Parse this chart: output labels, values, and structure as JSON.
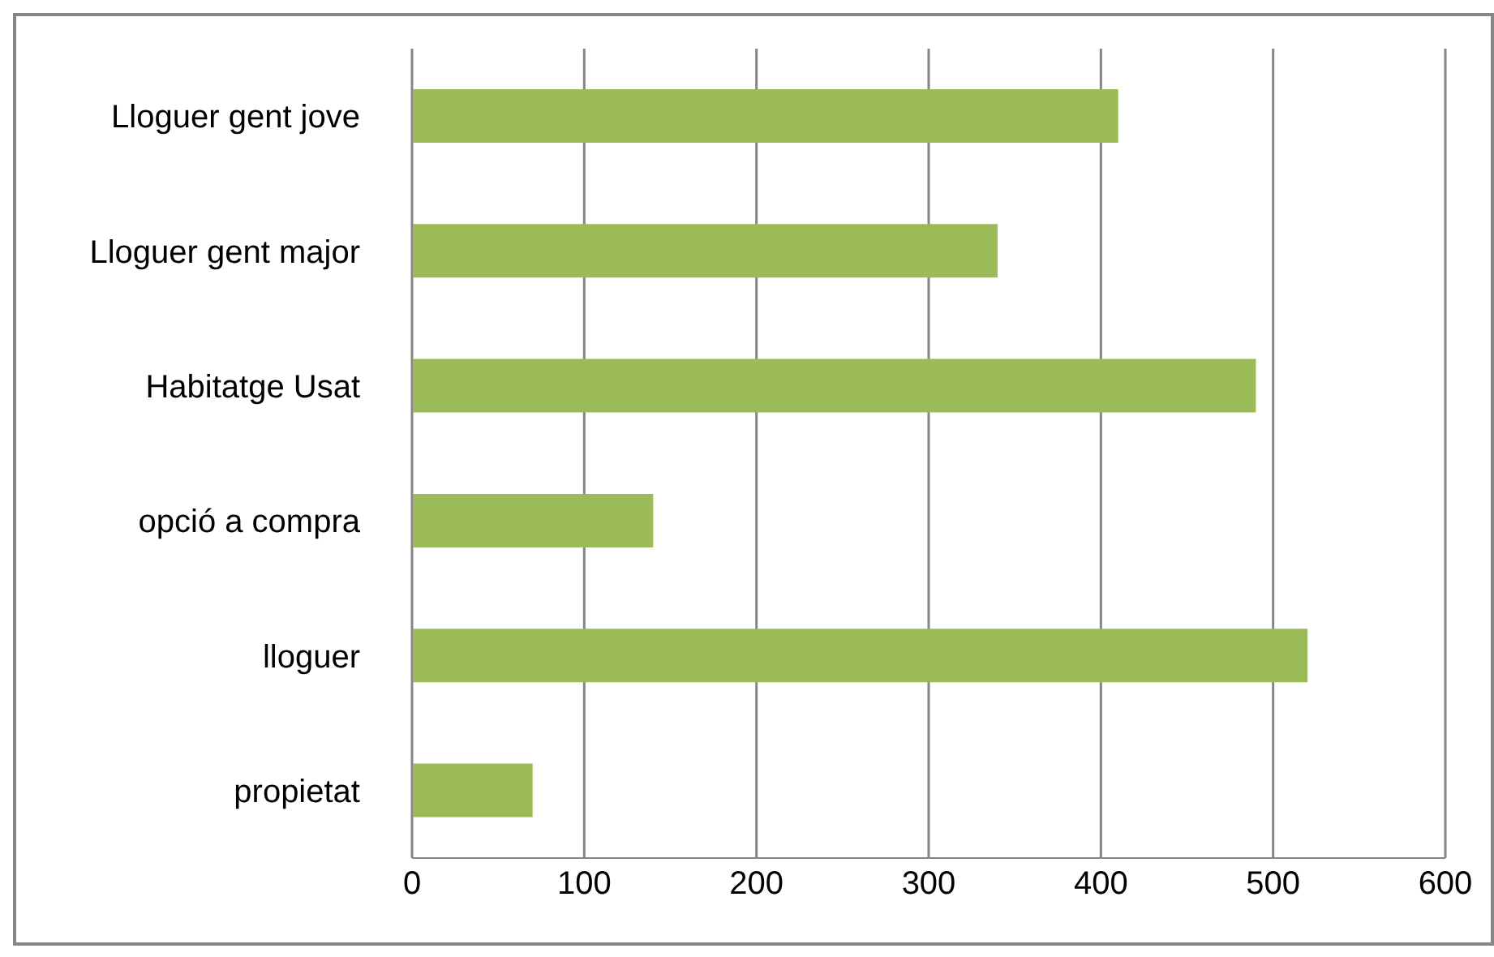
{
  "chart_data": {
    "type": "bar",
    "orientation": "horizontal",
    "categories": [
      "Lloguer gent jove",
      "Lloguer gent major",
      "Habitatge Usat",
      "opció a compra",
      "lloguer",
      "propietat"
    ],
    "values": [
      410,
      340,
      490,
      140,
      520,
      70
    ],
    "color": "#9bbb59",
    "xlim": [
      0,
      600
    ],
    "xticks": [
      0,
      100,
      200,
      300,
      400,
      500,
      600
    ],
    "grid": "x"
  }
}
